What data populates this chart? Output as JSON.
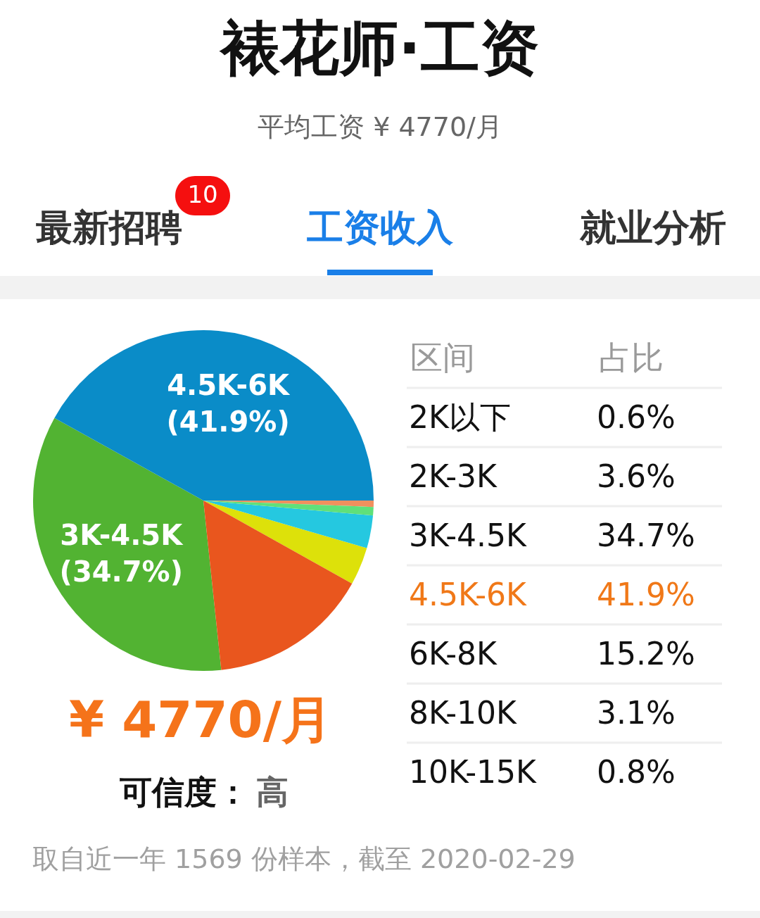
{
  "chart_data": [
    {
      "type": "pie",
      "title": "裱花师·工资",
      "subtitle": "平均工资 ¥ 4770/月",
      "categories": [
        null,
        null,
        "3K-4.5K",
        "4.5K-6K",
        null,
        null,
        null
      ],
      "values": [
        0.6,
        3.6,
        34.7,
        41.9,
        15.2,
        3.1,
        0.8
      ],
      "colors": [
        "#f0905e",
        "#dde10a",
        "#52b332",
        "#0a8cc8",
        "#e9561e",
        "#25c8e0",
        "#5fe07a"
      ],
      "value_labels": [
        null,
        null,
        "(34.7%)",
        "(41.9%)",
        null,
        null,
        null
      ],
      "annotations": [
        "最新招聘",
        "10",
        "工资收入",
        "就业分析",
        "¥ 4770/月",
        "可信度：",
        "高",
        "取自近一年 1569 份样本，截至 2020-02-29"
      ]
    },
    {
      "type": "other",
      "categories": [
        "2K以下",
        "2K-3K",
        "3K-4.5K",
        "4.5K-6K",
        "6K-8K",
        "8K-10K",
        "10K-15K"
      ],
      "values": [
        0.6,
        3.6,
        34.7,
        41.9,
        15.2,
        3.1,
        0.8
      ],
      "value_labels": [
        "0.6%",
        "3.6%",
        "34.7%",
        "41.9%",
        "15.2%",
        "3.1%",
        "0.8%"
      ],
      "annotations": [
        "区间",
        "占比"
      ]
    }
  ]
}
